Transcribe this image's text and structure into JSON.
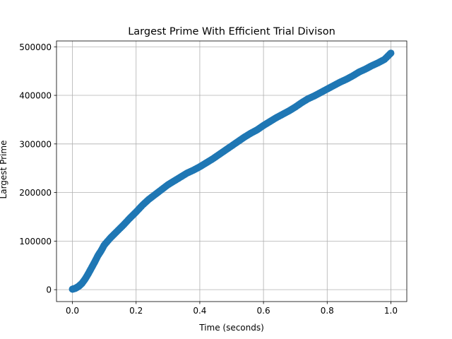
{
  "chart_data": {
    "type": "scatter",
    "title": "Largest Prime With Efficient Trial Divison",
    "xlabel": "Time (seconds)",
    "ylabel": "Largest Prime",
    "xlim": [
      -0.05,
      1.05
    ],
    "ylim": [
      -24500,
      512000
    ],
    "x_ticks": [
      0.0,
      0.2,
      0.4,
      0.6,
      0.8,
      1.0
    ],
    "x_tick_labels": [
      "0.0",
      "0.2",
      "0.4",
      "0.6",
      "0.8",
      "1.0"
    ],
    "y_ticks": [
      0,
      100000,
      200000,
      300000,
      400000,
      500000
    ],
    "y_tick_labels": [
      "0",
      "100000",
      "200000",
      "300000",
      "400000",
      "500000"
    ],
    "grid": true,
    "marker_color": "#1f77b4",
    "series": [
      {
        "x": [
          0.0,
          0.005,
          0.01,
          0.015,
          0.02,
          0.025,
          0.03,
          0.04,
          0.05,
          0.06,
          0.07,
          0.08,
          0.09,
          0.1,
          0.12,
          0.14,
          0.16,
          0.18,
          0.2,
          0.22,
          0.24,
          0.26,
          0.28,
          0.3,
          0.32,
          0.34,
          0.36,
          0.38,
          0.4,
          0.42,
          0.44,
          0.46,
          0.48,
          0.5,
          0.52,
          0.54,
          0.56,
          0.58,
          0.6,
          0.62,
          0.64,
          0.66,
          0.68,
          0.7,
          0.72,
          0.74,
          0.76,
          0.78,
          0.8,
          0.82,
          0.84,
          0.86,
          0.88,
          0.9,
          0.92,
          0.94,
          0.96,
          0.98,
          1.0
        ],
        "y": [
          1000,
          2000,
          3000,
          5000,
          7000,
          10000,
          13000,
          22000,
          33000,
          45000,
          57000,
          70000,
          80000,
          92000,
          107000,
          120000,
          133000,
          147000,
          160000,
          174000,
          186000,
          196000,
          206000,
          216000,
          224000,
          232000,
          240000,
          246000,
          253000,
          261000,
          269000,
          278000,
          287000,
          296000,
          305000,
          314000,
          322000,
          329000,
          338000,
          346000,
          354000,
          361000,
          368000,
          376000,
          385000,
          393000,
          399000,
          406000,
          413000,
          420000,
          427000,
          433000,
          440000,
          448000,
          454000,
          461000,
          467000,
          474000,
          487000
        ]
      }
    ]
  }
}
